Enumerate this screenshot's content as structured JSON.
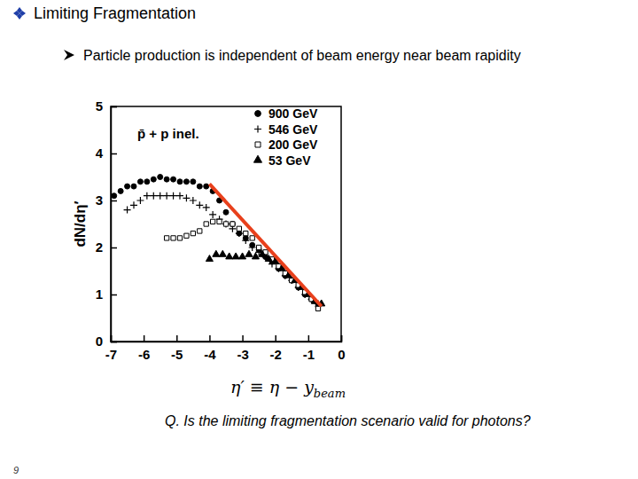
{
  "slide": {
    "title": "Limiting Fragmentation",
    "bullet": "Particle production is independent of beam energy near beam rapidity",
    "question": "Q. Is the limiting fragmentation scenario valid for photons?",
    "page_number": 9
  },
  "chart_data": {
    "type": "scatter",
    "annotation": "p̄ + p inel.",
    "xlabel": {
      "text": "η′ ≡ η − y",
      "subscript": "beam"
    },
    "ylabel": "dN/dη′",
    "xlim": [
      -7,
      0
    ],
    "xticks": [
      -7,
      -6,
      -5,
      -4,
      -3,
      -2,
      -1,
      0
    ],
    "ylim": [
      0,
      5
    ],
    "yticks": [
      0,
      1,
      2,
      3,
      4,
      5
    ],
    "legend": "upper right",
    "series": [
      {
        "name": "900 GeV",
        "color": "#000000",
        "marker": "circle",
        "x": [
          -6.9,
          -6.7,
          -6.5,
          -6.3,
          -6.1,
          -5.9,
          -5.7,
          -5.5,
          -5.3,
          -5.1,
          -4.9,
          -4.7,
          -4.5,
          -4.3,
          -4.1,
          -3.9,
          -3.7,
          -3.5,
          -3.3,
          -3.1,
          -2.9,
          -2.7,
          -2.5,
          -2.3,
          -2.1,
          -1.9,
          -1.7,
          -1.5,
          -1.3,
          -1.1,
          -0.9,
          -0.7
        ],
        "values": [
          3.1,
          3.2,
          3.3,
          3.3,
          3.4,
          3.4,
          3.45,
          3.5,
          3.45,
          3.45,
          3.4,
          3.4,
          3.4,
          3.3,
          3.3,
          3.2,
          3.0,
          2.75,
          2.5,
          2.3,
          2.2,
          2.05,
          1.95,
          1.8,
          1.7,
          1.55,
          1.4,
          1.3,
          1.15,
          1.0,
          0.9,
          0.75
        ]
      },
      {
        "name": "546 GeV",
        "color": "#000000",
        "marker": "plus",
        "x": [
          -6.5,
          -6.3,
          -6.1,
          -5.9,
          -5.7,
          -5.5,
          -5.3,
          -5.1,
          -4.9,
          -4.7,
          -4.5,
          -4.3,
          -4.1,
          -3.9,
          -3.7,
          -3.5,
          -3.3,
          -3.1,
          -2.9,
          -2.7,
          -2.5,
          -2.3,
          -2.1,
          -1.9,
          -1.7,
          -1.5,
          -1.3,
          -1.1,
          -0.9,
          -0.7
        ],
        "values": [
          2.8,
          2.9,
          3.0,
          3.1,
          3.1,
          3.1,
          3.1,
          3.1,
          3.1,
          3.05,
          3.0,
          2.9,
          2.85,
          2.7,
          2.6,
          2.5,
          2.4,
          2.3,
          2.15,
          2.0,
          1.9,
          1.8,
          1.65,
          1.55,
          1.4,
          1.3,
          1.15,
          1.0,
          0.9,
          0.8
        ]
      },
      {
        "name": "200 GeV",
        "color": "#000000",
        "marker": "square-open",
        "x": [
          -5.3,
          -5.1,
          -4.9,
          -4.7,
          -4.5,
          -4.3,
          -4.1,
          -3.9,
          -3.7,
          -3.5,
          -3.3,
          -3.1,
          -2.9,
          -2.7,
          -2.5,
          -2.3,
          -2.1,
          -1.9,
          -1.7,
          -1.5,
          -1.3,
          -1.1,
          -0.9,
          -0.7
        ],
        "values": [
          2.2,
          2.2,
          2.2,
          2.25,
          2.3,
          2.35,
          2.5,
          2.55,
          2.55,
          2.5,
          2.5,
          2.4,
          2.3,
          2.2,
          2.0,
          1.9,
          1.75,
          1.6,
          1.45,
          1.3,
          1.2,
          1.05,
          0.9,
          0.7
        ]
      },
      {
        "name": "53 GeV",
        "color": "#000000",
        "marker": "triangle",
        "x": [
          -4.0,
          -3.8,
          -3.6,
          -3.4,
          -3.2,
          -3.0,
          -2.8,
          -2.6,
          -2.4,
          -2.2,
          -2.0,
          -1.8,
          -1.6,
          -1.4,
          -1.2,
          -1.0,
          -0.8,
          -0.6
        ],
        "values": [
          1.75,
          1.85,
          1.85,
          1.8,
          1.8,
          1.8,
          1.85,
          1.8,
          1.85,
          1.75,
          1.7,
          1.55,
          1.4,
          1.3,
          1.15,
          1.0,
          0.85,
          0.8
        ]
      },
      {
        "type": "line",
        "color": "#e8401c",
        "line_style": "solid",
        "x": [
          -4.0,
          -0.6
        ],
        "values": [
          3.35,
          0.75
        ]
      }
    ]
  }
}
